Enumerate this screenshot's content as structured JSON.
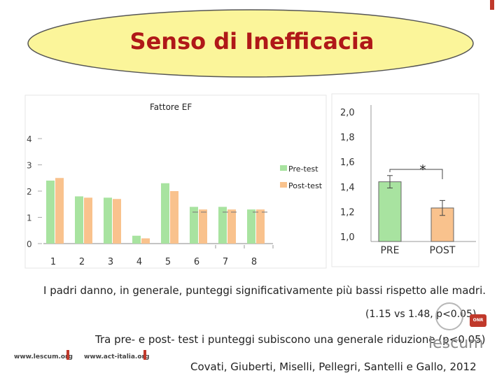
{
  "slide": {
    "title": "Senso di Inefficacia",
    "finding_1": "I padri danno, in generale, punteggi significativamente più bassi rispetto alle madri.",
    "finding_1_values": "(1.15 vs 1.48, p<0.05)",
    "finding_2": "Tra pre- e post- test i punteggi subiscono una generale riduzione (p<0.05)",
    "citation": "Covati, Giuberti, Miselli, Pellegri, Santelli e Gallo, 2012"
  },
  "logos": {
    "lescum_url": "www.lescum.org",
    "act_url": "www.act-italia.org",
    "lescum_brand": "lescum",
    "badge": "ONR"
  },
  "colors": {
    "title": "#b01818",
    "oval_fill": "#fbf59a",
    "pre": "#a8e3a0",
    "post": "#f9c28d",
    "axis": "#888888",
    "logo_red": "#c0392b"
  },
  "chart_data": [
    {
      "type": "bar",
      "title": "Fattore EF",
      "categories": [
        "1",
        "2",
        "3",
        "4",
        "5",
        "6",
        "7",
        "8"
      ],
      "series": [
        {
          "name": "Pre-test",
          "values": [
            2.4,
            1.8,
            1.75,
            0.3,
            2.3,
            1.4,
            1.4,
            1.3
          ]
        },
        {
          "name": "Post-test",
          "values": [
            2.5,
            1.75,
            1.7,
            0.2,
            2.0,
            1.3,
            1.3,
            1.3
          ]
        }
      ],
      "yticks": [
        "0",
        "1",
        "2",
        "3",
        "4"
      ],
      "ylim": [
        0,
        4.5
      ],
      "legend": "right"
    },
    {
      "type": "bar",
      "categories": [
        "PRE",
        "POST"
      ],
      "values": [
        1.44,
        1.23
      ],
      "errors": [
        0.05,
        0.06
      ],
      "yticks": [
        "1,0",
        "1,2",
        "1,4",
        "1,6",
        "1,8",
        "2,0"
      ],
      "ylim": [
        1.0,
        2.0
      ],
      "annotation": "*"
    }
  ]
}
